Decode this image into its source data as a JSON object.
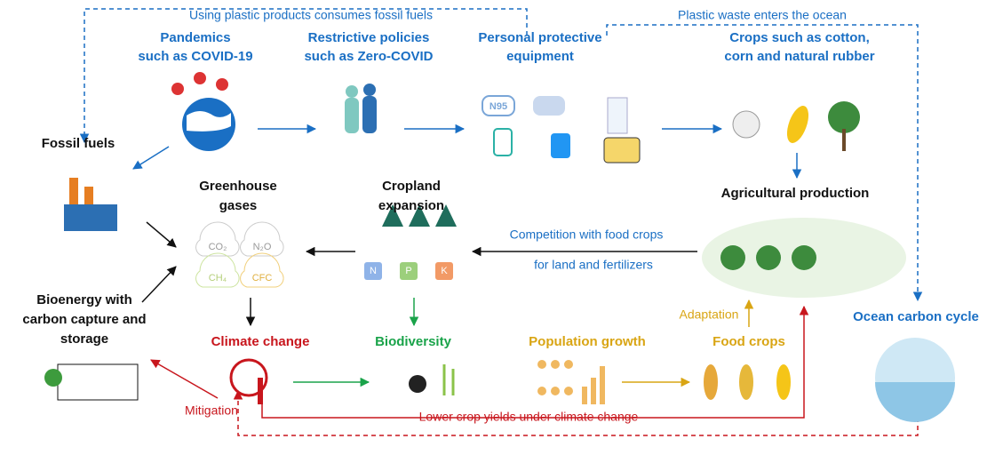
{
  "nodes": [
    [
      "Pandemics",
      "such as COVID-19"
    ],
    [
      "Restrictive policies",
      "such as Zero-COVID"
    ],
    [
      "Personal protective",
      "equipment"
    ],
    [
      "Crops such as cotton,",
      "corn and natural rubber"
    ],
    [
      "Fossil fuels"
    ],
    [
      "Greenhouse",
      "gases"
    ],
    [
      "Cropland",
      "expansion"
    ],
    [
      "Agricultural production"
    ],
    [
      "Bioenergy with",
      "carbon capture and",
      "storage"
    ],
    [
      "Climate change"
    ],
    [
      "Biodiversity"
    ],
    [
      "Population growth"
    ],
    [
      "Food crops"
    ],
    [
      "Ocean carbon cycle"
    ]
  ],
  "edges": [
    "Using plastic products consumes fossil fuels",
    "Plastic waste enters the ocean",
    "Competition with food crops",
    "for land and fertilizers",
    "Adaptation",
    "Mitigation",
    "Lower crop yields under climate change"
  ],
  "icon_labels": [
    "CO₂",
    "N₂O",
    "CH₄",
    "CFC",
    "N95",
    "N",
    "P",
    "K"
  ]
}
